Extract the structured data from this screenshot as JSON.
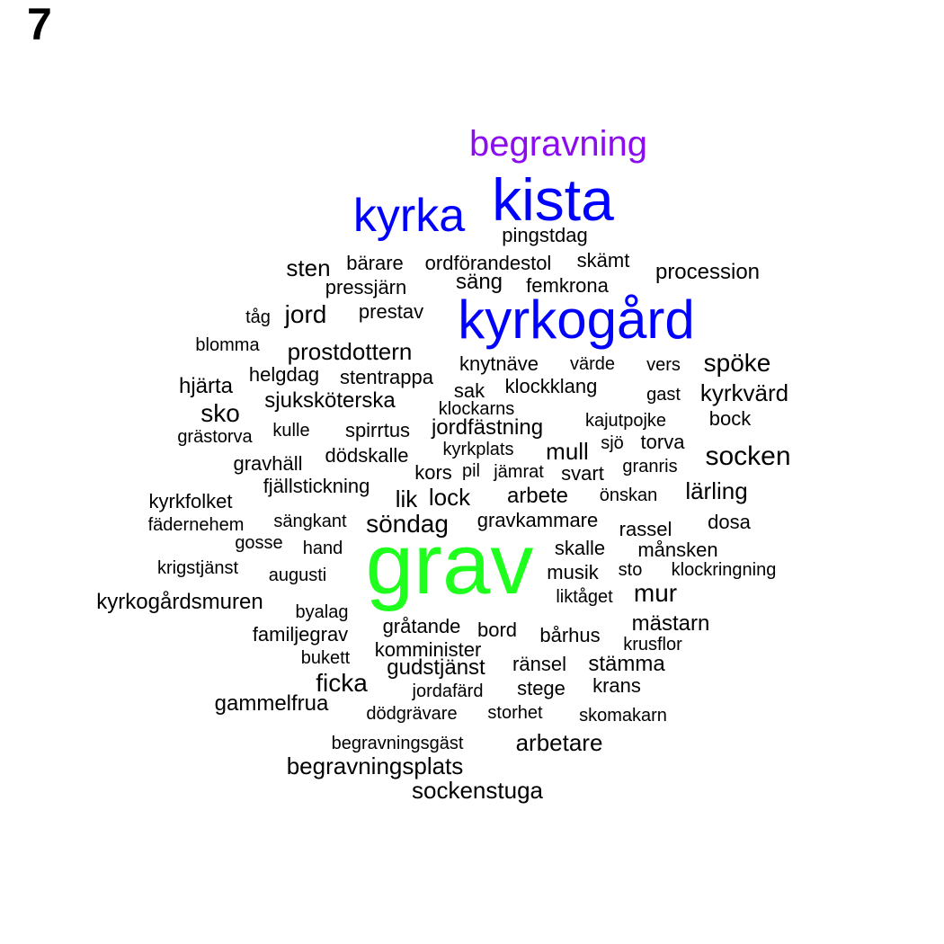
{
  "panel_label": "7",
  "colors": {
    "black": "#000000",
    "blue": "#0000ff",
    "purple": "#8b0cec",
    "green": "#1eff1e"
  },
  "words": [
    {
      "text": "grav",
      "color": "green"
    },
    {
      "text": "kyrkogård",
      "color": "blue"
    },
    {
      "text": "kista",
      "color": "blue"
    },
    {
      "text": "kyrka",
      "color": "blue"
    },
    {
      "text": "begravning",
      "color": "purple"
    },
    {
      "text": "pingstdag",
      "color": "black"
    },
    {
      "text": "sten",
      "color": "black"
    },
    {
      "text": "bärare",
      "color": "black"
    },
    {
      "text": "ordförandestol",
      "color": "black"
    },
    {
      "text": "skämt",
      "color": "black"
    },
    {
      "text": "procession",
      "color": "black"
    },
    {
      "text": "pressjärn",
      "color": "black"
    },
    {
      "text": "säng",
      "color": "black"
    },
    {
      "text": "femkrona",
      "color": "black"
    },
    {
      "text": "tåg",
      "color": "black"
    },
    {
      "text": "jord",
      "color": "black"
    },
    {
      "text": "prestav",
      "color": "black"
    },
    {
      "text": "blomma",
      "color": "black"
    },
    {
      "text": "prostdottern",
      "color": "black"
    },
    {
      "text": "knytnäve",
      "color": "black"
    },
    {
      "text": "värde",
      "color": "black"
    },
    {
      "text": "vers",
      "color": "black"
    },
    {
      "text": "spöke",
      "color": "black"
    },
    {
      "text": "helgdag",
      "color": "black"
    },
    {
      "text": "stentrappa",
      "color": "black"
    },
    {
      "text": "hjärta",
      "color": "black"
    },
    {
      "text": "sak",
      "color": "black"
    },
    {
      "text": "klockklang",
      "color": "black"
    },
    {
      "text": "gast",
      "color": "black"
    },
    {
      "text": "kyrkvärd",
      "color": "black"
    },
    {
      "text": "sjuksköterska",
      "color": "black"
    },
    {
      "text": "klockarns",
      "color": "black"
    },
    {
      "text": "sko",
      "color": "black"
    },
    {
      "text": "kajutpojke",
      "color": "black"
    },
    {
      "text": "bock",
      "color": "black"
    },
    {
      "text": "kulle",
      "color": "black"
    },
    {
      "text": "spirrtus",
      "color": "black"
    },
    {
      "text": "jordfästning",
      "color": "black"
    },
    {
      "text": "grästorva",
      "color": "black"
    },
    {
      "text": "kyrkplats",
      "color": "black"
    },
    {
      "text": "sjö",
      "color": "black"
    },
    {
      "text": "torva",
      "color": "black"
    },
    {
      "text": "dödskalle",
      "color": "black"
    },
    {
      "text": "mull",
      "color": "black"
    },
    {
      "text": "socken",
      "color": "black"
    },
    {
      "text": "gravhäll",
      "color": "black"
    },
    {
      "text": "granris",
      "color": "black"
    },
    {
      "text": "kors",
      "color": "black"
    },
    {
      "text": "pil",
      "color": "black"
    },
    {
      "text": "jämrat",
      "color": "black"
    },
    {
      "text": "svart",
      "color": "black"
    },
    {
      "text": "fjällstickning",
      "color": "black"
    },
    {
      "text": "lärling",
      "color": "black"
    },
    {
      "text": "lik",
      "color": "black"
    },
    {
      "text": "lock",
      "color": "black"
    },
    {
      "text": "arbete",
      "color": "black"
    },
    {
      "text": "önskan",
      "color": "black"
    },
    {
      "text": "kyrkfolket",
      "color": "black"
    },
    {
      "text": "sängkant",
      "color": "black"
    },
    {
      "text": "gravkammare",
      "color": "black"
    },
    {
      "text": "fädernehem",
      "color": "black"
    },
    {
      "text": "söndag",
      "color": "black"
    },
    {
      "text": "dosa",
      "color": "black"
    },
    {
      "text": "rassel",
      "color": "black"
    },
    {
      "text": "gosse",
      "color": "black"
    },
    {
      "text": "hand",
      "color": "black"
    },
    {
      "text": "skalle",
      "color": "black"
    },
    {
      "text": "månsken",
      "color": "black"
    },
    {
      "text": "krigstjänst",
      "color": "black"
    },
    {
      "text": "augusti",
      "color": "black"
    },
    {
      "text": "musik",
      "color": "black"
    },
    {
      "text": "sto",
      "color": "black"
    },
    {
      "text": "klockringning",
      "color": "black"
    },
    {
      "text": "kyrkogårdsmuren",
      "color": "black"
    },
    {
      "text": "liktåget",
      "color": "black"
    },
    {
      "text": "mur",
      "color": "black"
    },
    {
      "text": "byalag",
      "color": "black"
    },
    {
      "text": "gråtande",
      "color": "black"
    },
    {
      "text": "bord",
      "color": "black"
    },
    {
      "text": "mästarn",
      "color": "black"
    },
    {
      "text": "familjegrav",
      "color": "black"
    },
    {
      "text": "bårhus",
      "color": "black"
    },
    {
      "text": "krusflor",
      "color": "black"
    },
    {
      "text": "komminister",
      "color": "black"
    },
    {
      "text": "bukett",
      "color": "black"
    },
    {
      "text": "gudstjänst",
      "color": "black"
    },
    {
      "text": "ränsel",
      "color": "black"
    },
    {
      "text": "stämma",
      "color": "black"
    },
    {
      "text": "ficka",
      "color": "black"
    },
    {
      "text": "jordafärd",
      "color": "black"
    },
    {
      "text": "stege",
      "color": "black"
    },
    {
      "text": "krans",
      "color": "black"
    },
    {
      "text": "gammelfrua",
      "color": "black"
    },
    {
      "text": "dödgrävare",
      "color": "black"
    },
    {
      "text": "storhet",
      "color": "black"
    },
    {
      "text": "skomakarn",
      "color": "black"
    },
    {
      "text": "begravningsgäst",
      "color": "black"
    },
    {
      "text": "arbetare",
      "color": "black"
    },
    {
      "text": "begravningsplats",
      "color": "black"
    },
    {
      "text": "sockenstuga",
      "color": "black"
    }
  ]
}
